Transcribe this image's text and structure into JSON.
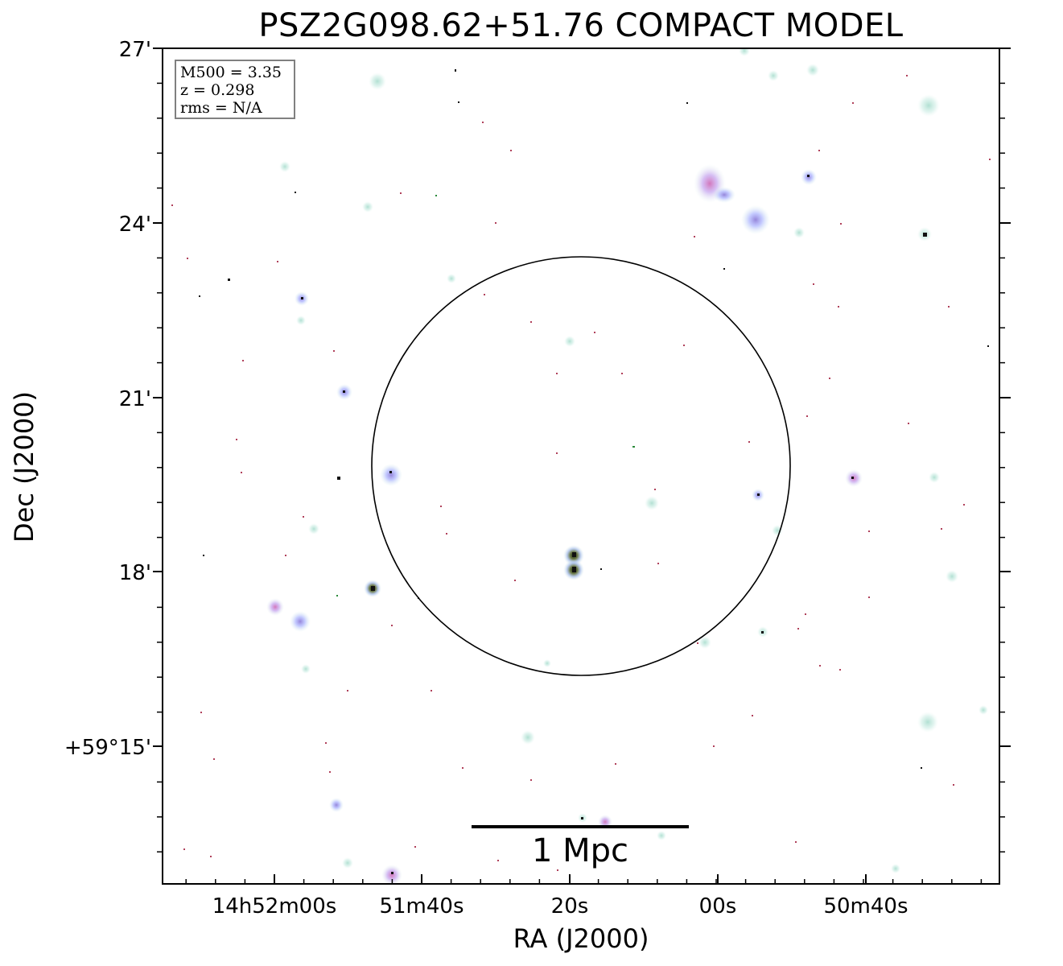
{
  "figure": {
    "title": "PSZ2G098.62+51.76 COMPACT MODEL",
    "xlabel": "RA (J2000)",
    "ylabel": "Dec (J2000)",
    "x_tick_labels": [
      "14h52m00s",
      "51m40s",
      "20s",
      "00s",
      "50m40s"
    ],
    "y_tick_labels": [
      "27'",
      "24'",
      "21'",
      "18'",
      "+59°15'"
    ],
    "info": {
      "m500": "M500 = 3.35",
      "z": "z = 0.298",
      "rms": "rms = N/A"
    },
    "scalebar_label": "1 Mpc",
    "colors": {
      "frame": "#000000",
      "circle": "#000000",
      "info_border": "#808080",
      "source_blue": "#b0b8ff",
      "source_teal": "#cfeee6",
      "source_pink": "#e9a8d6",
      "source_core": "#111111",
      "speck_red": "#b0405a",
      "speck_green": "#2a8a3a"
    }
  }
}
